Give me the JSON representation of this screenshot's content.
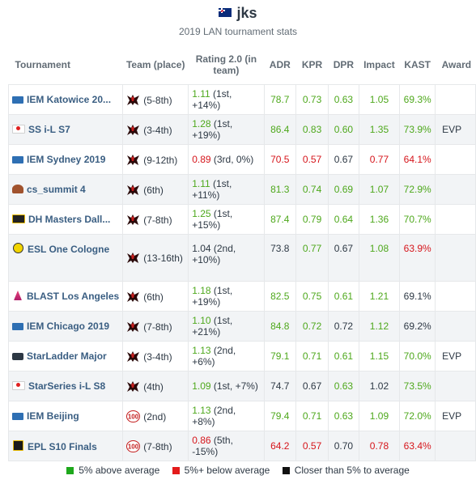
{
  "player": {
    "name": "jks"
  },
  "subtitle": "2019 LAN tournament stats",
  "columns": {
    "tournament": "Tournament",
    "team": "Team (place)",
    "rating": "Rating 2.0 (in team)",
    "adr": "ADR",
    "kpr": "KPR",
    "dpr": "DPR",
    "impact": "Impact",
    "kast": "KAST",
    "award": "Award"
  },
  "rows": [
    {
      "event": "IEM Katowice 20...",
      "icon": "iem",
      "team_logo": "renegades",
      "place": "(5-8th)",
      "rating": "1.11",
      "rating_paren": "(1st, +14%)",
      "rating_color": "g",
      "adr": "78.7",
      "adr_color": "g",
      "kpr": "0.73",
      "kpr_color": "g",
      "dpr": "0.63",
      "dpr_color": "g",
      "impact": "1.05",
      "impact_color": "g",
      "kast": "69.3%",
      "kast_color": "g",
      "award": ""
    },
    {
      "event": "SS i-L S7",
      "icon": "ss",
      "team_logo": "renegades",
      "place": "(3-4th)",
      "rating": "1.28",
      "rating_paren": "(1st, +19%)",
      "rating_color": "g",
      "adr": "86.4",
      "adr_color": "g",
      "kpr": "0.83",
      "kpr_color": "g",
      "dpr": "0.60",
      "dpr_color": "g",
      "impact": "1.35",
      "impact_color": "g",
      "kast": "73.9%",
      "kast_color": "g",
      "award": "EVP"
    },
    {
      "event": "IEM Sydney 2019",
      "icon": "iem",
      "team_logo": "renegades",
      "place": "(9-12th)",
      "rating": "0.89",
      "rating_paren": "(3rd, 0%)",
      "rating_color": "r",
      "adr": "70.5",
      "adr_color": "r",
      "kpr": "0.57",
      "kpr_color": "r",
      "dpr": "0.67",
      "dpr_color": "k",
      "impact": "0.77",
      "impact_color": "r",
      "kast": "64.1%",
      "kast_color": "r",
      "award": ""
    },
    {
      "event": "cs_summit 4",
      "icon": "cs",
      "team_logo": "renegades",
      "place": "(6th)",
      "rating": "1.11",
      "rating_paren": "(1st, +11%)",
      "rating_color": "g",
      "adr": "81.3",
      "adr_color": "g",
      "kpr": "0.74",
      "kpr_color": "g",
      "dpr": "0.69",
      "dpr_color": "g",
      "impact": "1.07",
      "impact_color": "g",
      "kast": "72.9%",
      "kast_color": "g",
      "award": ""
    },
    {
      "event": "DH Masters Dall...",
      "icon": "dh",
      "team_logo": "renegades",
      "place": "(7-8th)",
      "rating": "1.25",
      "rating_paren": "(1st, +15%)",
      "rating_color": "g",
      "adr": "87.4",
      "adr_color": "g",
      "kpr": "0.79",
      "kpr_color": "g",
      "dpr": "0.64",
      "dpr_color": "g",
      "impact": "1.36",
      "impact_color": "g",
      "kast": "70.7%",
      "kast_color": "g",
      "award": ""
    },
    {
      "event": "ESL One Cologne",
      "icon": "esl",
      "team_logo": "renegades",
      "place": "(13-16th)",
      "rating": "1.04",
      "rating_paren": "(2nd, +10%)",
      "rating_color": "k",
      "adr": "73.8",
      "adr_color": "k",
      "kpr": "0.77",
      "kpr_color": "g",
      "dpr": "0.67",
      "dpr_color": "k",
      "impact": "1.08",
      "impact_color": "g",
      "kast": "63.9%",
      "kast_color": "r",
      "award": ""
    },
    {
      "event": "BLAST Los Angeles",
      "icon": "blast",
      "team_logo": "renegades",
      "place": "(6th)",
      "rating": "1.18",
      "rating_paren": "(1st, +19%)",
      "rating_color": "g",
      "adr": "82.5",
      "adr_color": "g",
      "kpr": "0.75",
      "kpr_color": "g",
      "dpr": "0.61",
      "dpr_color": "g",
      "impact": "1.21",
      "impact_color": "g",
      "kast": "69.1%",
      "kast_color": "k",
      "award": ""
    },
    {
      "event": "IEM Chicago 2019",
      "icon": "iem",
      "team_logo": "renegades",
      "place": "(7-8th)",
      "rating": "1.10",
      "rating_paren": "(1st, +21%)",
      "rating_color": "g",
      "adr": "84.8",
      "adr_color": "g",
      "kpr": "0.72",
      "kpr_color": "g",
      "dpr": "0.72",
      "dpr_color": "k",
      "impact": "1.12",
      "impact_color": "g",
      "kast": "69.2%",
      "kast_color": "k",
      "award": ""
    },
    {
      "event": "StarLadder Major",
      "icon": "sl",
      "team_logo": "renegades",
      "place": "(3-4th)",
      "rating": "1.13",
      "rating_paren": "(2nd, +6%)",
      "rating_color": "g",
      "adr": "79.1",
      "adr_color": "g",
      "kpr": "0.71",
      "kpr_color": "g",
      "dpr": "0.61",
      "dpr_color": "g",
      "impact": "1.15",
      "impact_color": "g",
      "kast": "70.0%",
      "kast_color": "g",
      "award": "EVP"
    },
    {
      "event": "StarSeries i-L S8",
      "icon": "ss",
      "team_logo": "renegades",
      "place": "(4th)",
      "rating": "1.09",
      "rating_paren": "(1st, +7%)",
      "rating_color": "g",
      "adr": "74.7",
      "adr_color": "k",
      "kpr": "0.67",
      "kpr_color": "k",
      "dpr": "0.63",
      "dpr_color": "g",
      "impact": "1.02",
      "impact_color": "k",
      "kast": "73.5%",
      "kast_color": "g",
      "award": ""
    },
    {
      "event": "IEM Beijing",
      "icon": "iem",
      "team_logo": "100thieves",
      "place": "(2nd)",
      "rating": "1.13",
      "rating_paren": "(2nd, +8%)",
      "rating_color": "g",
      "adr": "79.4",
      "adr_color": "g",
      "kpr": "0.71",
      "kpr_color": "g",
      "dpr": "0.63",
      "dpr_color": "g",
      "impact": "1.09",
      "impact_color": "g",
      "kast": "72.0%",
      "kast_color": "g",
      "award": "EVP"
    },
    {
      "event": "EPL S10 Finals",
      "icon": "epl",
      "team_logo": "100thieves",
      "place": "(7-8th)",
      "rating": "0.86",
      "rating_paren": "(5th, -15%)",
      "rating_color": "r",
      "adr": "64.2",
      "adr_color": "r",
      "kpr": "0.57",
      "kpr_color": "r",
      "dpr": "0.70",
      "dpr_color": "k",
      "impact": "0.78",
      "impact_color": "r",
      "kast": "63.4%",
      "kast_color": "r",
      "award": ""
    }
  ],
  "legend": {
    "above": "5% above average",
    "below": "5%+ below average",
    "close": "Closer than 5% to average"
  },
  "colors": {
    "good": "#4ea81c",
    "bad": "#d6151b",
    "neutral": "#2d3844",
    "link": "#3a5e82"
  }
}
